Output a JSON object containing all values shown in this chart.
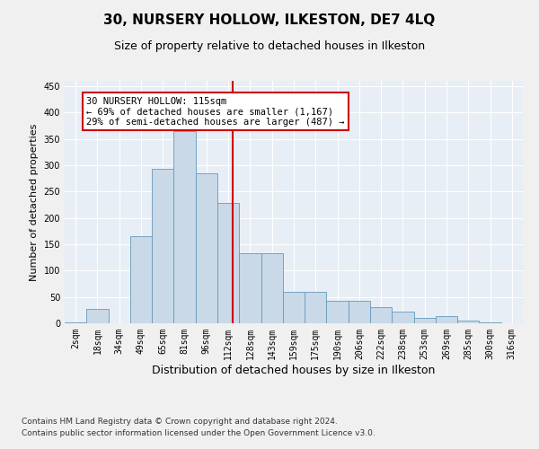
{
  "title": "30, NURSERY HOLLOW, ILKESTON, DE7 4LQ",
  "subtitle": "Size of property relative to detached houses in Ilkeston",
  "xlabel": "Distribution of detached houses by size in Ilkeston",
  "ylabel": "Number of detached properties",
  "footnote1": "Contains HM Land Registry data © Crown copyright and database right 2024.",
  "footnote2": "Contains public sector information licensed under the Open Government Licence v3.0.",
  "annotation_line1": "30 NURSERY HOLLOW: 115sqm",
  "annotation_line2": "← 69% of detached houses are smaller (1,167)",
  "annotation_line3": "29% of semi-detached houses are larger (487) →",
  "property_size_idx": 7,
  "bar_color": "#c9d9e8",
  "bar_edge_color": "#6699bb",
  "vline_color": "#cc0000",
  "bg_color": "#e8eef5",
  "fig_bg_color": "#f0f0f0",
  "categories": [
    "2sqm",
    "18sqm",
    "34sqm",
    "49sqm",
    "65sqm",
    "81sqm",
    "96sqm",
    "112sqm",
    "128sqm",
    "143sqm",
    "159sqm",
    "175sqm",
    "190sqm",
    "206sqm",
    "222sqm",
    "238sqm",
    "253sqm",
    "269sqm",
    "285sqm",
    "300sqm",
    "316sqm"
  ],
  "values": [
    2,
    28,
    0,
    165,
    293,
    365,
    285,
    228,
    133,
    133,
    59,
    59,
    42,
    42,
    30,
    22,
    11,
    13,
    5,
    2,
    0
  ],
  "ylim": [
    0,
    460
  ],
  "yticks": [
    0,
    50,
    100,
    150,
    200,
    250,
    300,
    350,
    400,
    450
  ],
  "grid_color": "#ffffff",
  "title_fontsize": 11,
  "subtitle_fontsize": 9,
  "xlabel_fontsize": 9,
  "ylabel_fontsize": 8,
  "tick_fontsize": 7,
  "annotation_fontsize": 7.5,
  "footnote_fontsize": 6.5
}
